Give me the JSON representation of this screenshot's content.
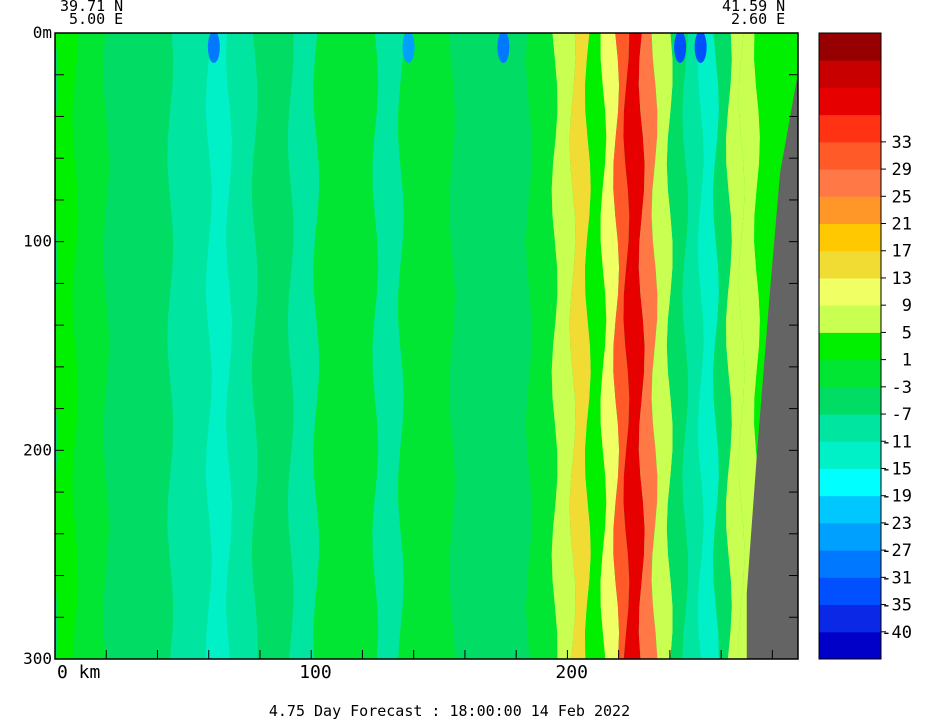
{
  "header": {
    "left": {
      "lat": "39.71 N",
      "lon": "5.00 E"
    },
    "right": {
      "lat": "41.59 N",
      "lon": "2.60 E"
    }
  },
  "footer": {
    "text": "4.75 Day Forecast : 18:00:00  14 Feb 2022"
  },
  "chart_data": {
    "type": "heatmap",
    "title": "",
    "xlabel": "km",
    "ylabel": "m",
    "xlim": [
      0,
      290
    ],
    "ylim": [
      300,
      0
    ],
    "x_ticks": [
      {
        "value": 0,
        "label": "0 km"
      },
      {
        "value": 100,
        "label": "100"
      },
      {
        "value": 200,
        "label": "200"
      }
    ],
    "y_ticks": [
      {
        "value": 0,
        "label": "0m"
      },
      {
        "value": 100,
        "label": "100"
      },
      {
        "value": 200,
        "label": "200"
      },
      {
        "value": 300,
        "label": "300"
      }
    ],
    "land_mask_color": "#646464",
    "bands_left_to_right": [
      {
        "x": 0,
        "value": 2
      },
      {
        "x": 8,
        "value": -4
      },
      {
        "x": 20,
        "value": -6
      },
      {
        "x": 30,
        "value": -6
      },
      {
        "x": 45,
        "value": -9
      },
      {
        "x": 60,
        "value": -14
      },
      {
        "x": 68,
        "value": -10
      },
      {
        "x": 78,
        "value": -6
      },
      {
        "x": 92,
        "value": -9
      },
      {
        "x": 102,
        "value": -2
      },
      {
        "x": 112,
        "value": -3
      },
      {
        "x": 125,
        "value": -10
      },
      {
        "x": 135,
        "value": -4
      },
      {
        "x": 145,
        "value": -1
      },
      {
        "x": 155,
        "value": -8
      },
      {
        "x": 165,
        "value": -5
      },
      {
        "x": 175,
        "value": -6
      },
      {
        "x": 185,
        "value": -2
      },
      {
        "x": 195,
        "value": 4
      },
      {
        "x": 202,
        "value": 12
      },
      {
        "x": 208,
        "value": 2
      },
      {
        "x": 214,
        "value": 8
      },
      {
        "x": 219,
        "value": 28
      },
      {
        "x": 223,
        "value": 36
      },
      {
        "x": 229,
        "value": 24
      },
      {
        "x": 234,
        "value": 6
      },
      {
        "x": 240,
        "value": -6
      },
      {
        "x": 246,
        "value": -12
      },
      {
        "x": 252,
        "value": -16
      },
      {
        "x": 258,
        "value": -6
      },
      {
        "x": 263,
        "value": 6
      },
      {
        "x": 268,
        "value": 4
      },
      {
        "x": 274,
        "value": 1
      },
      {
        "x": 290,
        "value": 1
      }
    ],
    "colorbar": {
      "colors": [
        "#0000c8",
        "#0a28e6",
        "#0050ff",
        "#0078ff",
        "#00a0ff",
        "#00c8ff",
        "#00ffff",
        "#00f0c8",
        "#00e6a0",
        "#00dc64",
        "#00e632",
        "#00f000",
        "#c8ff50",
        "#f0ff64",
        "#f0dc32",
        "#ffc800",
        "#ff9628",
        "#ff7846",
        "#ff5a28",
        "#ff3214",
        "#e60000",
        "#c80000",
        "#960000"
      ],
      "labels": [
        "-40",
        "-35",
        "-31",
        "-27",
        "-23",
        "-19",
        "-15",
        "-11",
        "-7",
        "-3",
        "1",
        "5",
        "9",
        "13",
        "17",
        "21",
        "25",
        "29",
        "33"
      ]
    }
  }
}
